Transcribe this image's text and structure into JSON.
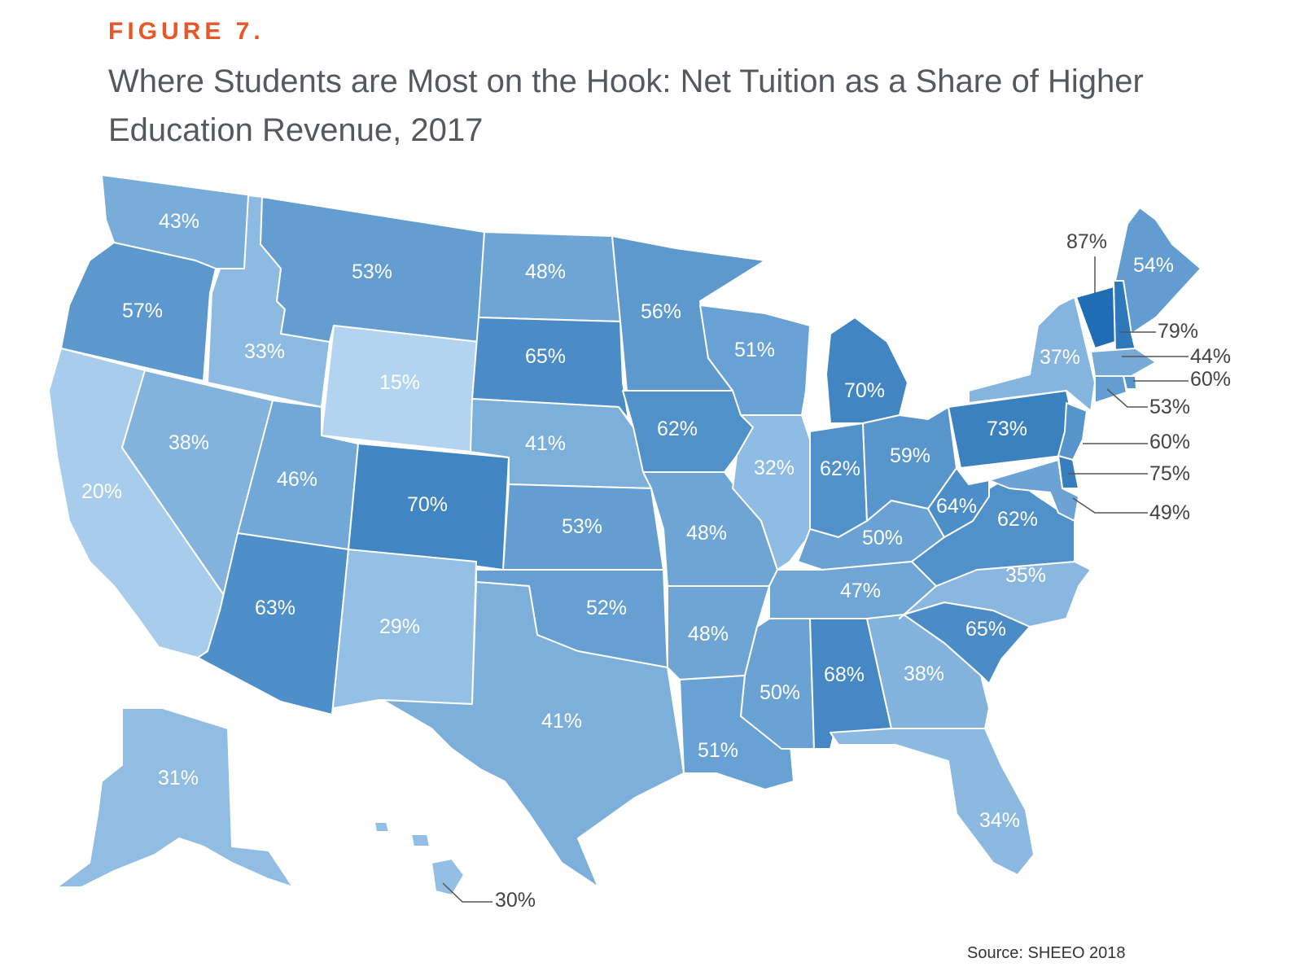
{
  "figure_label": "FIGURE 7.",
  "title": "Where Students are Most on the Hook: Net Tuition as a Share of Higher Education Revenue, 2017",
  "source": "Source: SHEEO 2018",
  "colors": {
    "label_accent": "#e8572a",
    "title_text": "#55595e",
    "scale_light": "#b2d4f0",
    "scale_dark": "#1e6db5"
  },
  "chart_data": {
    "type": "choropleth",
    "units": "percent",
    "states": [
      {
        "state": "WA",
        "value": 43,
        "label": "43%"
      },
      {
        "state": "OR",
        "value": 57,
        "label": "57%"
      },
      {
        "state": "CA",
        "value": 20,
        "label": "20%"
      },
      {
        "state": "ID",
        "value": 33,
        "label": "33%"
      },
      {
        "state": "NV",
        "value": 38,
        "label": "38%"
      },
      {
        "state": "MT",
        "value": 53,
        "label": "53%"
      },
      {
        "state": "WY",
        "value": 15,
        "label": "15%"
      },
      {
        "state": "UT",
        "value": 46,
        "label": "46%"
      },
      {
        "state": "AZ",
        "value": 63,
        "label": "63%"
      },
      {
        "state": "CO",
        "value": 70,
        "label": "70%"
      },
      {
        "state": "NM",
        "value": 29,
        "label": "29%"
      },
      {
        "state": "ND",
        "value": 48,
        "label": "48%"
      },
      {
        "state": "SD",
        "value": 65,
        "label": "65%"
      },
      {
        "state": "NE",
        "value": 41,
        "label": "41%"
      },
      {
        "state": "KS",
        "value": 53,
        "label": "53%"
      },
      {
        "state": "OK",
        "value": 52,
        "label": "52%"
      },
      {
        "state": "TX",
        "value": 41,
        "label": "41%"
      },
      {
        "state": "MN",
        "value": 56,
        "label": "56%"
      },
      {
        "state": "IA",
        "value": 62,
        "label": "62%"
      },
      {
        "state": "MO",
        "value": 48,
        "label": "48%"
      },
      {
        "state": "AR",
        "value": 48,
        "label": "48%"
      },
      {
        "state": "LA",
        "value": 51,
        "label": "51%"
      },
      {
        "state": "WI",
        "value": 51,
        "label": "51%"
      },
      {
        "state": "IL",
        "value": 32,
        "label": "32%"
      },
      {
        "state": "MI",
        "value": 70,
        "label": "70%"
      },
      {
        "state": "IN",
        "value": 62,
        "label": "62%"
      },
      {
        "state": "OH",
        "value": 59,
        "label": "59%"
      },
      {
        "state": "KY",
        "value": 50,
        "label": "50%"
      },
      {
        "state": "TN",
        "value": 47,
        "label": "47%"
      },
      {
        "state": "MS",
        "value": 50,
        "label": "50%"
      },
      {
        "state": "AL",
        "value": 68,
        "label": "68%"
      },
      {
        "state": "GA",
        "value": 38,
        "label": "38%"
      },
      {
        "state": "FL",
        "value": 34,
        "label": "34%"
      },
      {
        "state": "SC",
        "value": 65,
        "label": "65%"
      },
      {
        "state": "NC",
        "value": 35,
        "label": "35%"
      },
      {
        "state": "VA",
        "value": 62,
        "label": "62%"
      },
      {
        "state": "WV",
        "value": 64,
        "label": "64%"
      },
      {
        "state": "PA",
        "value": 73,
        "label": "73%"
      },
      {
        "state": "NY",
        "value": 37,
        "label": "37%"
      },
      {
        "state": "ME",
        "value": 54,
        "label": "54%"
      },
      {
        "state": "VT",
        "value": 87,
        "label": "87%"
      },
      {
        "state": "NH",
        "value": 79,
        "label": "79%"
      },
      {
        "state": "MA",
        "value": 44,
        "label": "44%"
      },
      {
        "state": "RI",
        "value": 60,
        "label": "60%"
      },
      {
        "state": "CT",
        "value": 53,
        "label": "53%"
      },
      {
        "state": "NJ",
        "value": 60,
        "label": "60%"
      },
      {
        "state": "DE",
        "value": 75,
        "label": "75%"
      },
      {
        "state": "MD",
        "value": 49,
        "label": "49%"
      },
      {
        "state": "AK",
        "value": 31,
        "label": "31%"
      },
      {
        "state": "HI",
        "value": 30,
        "label": "30%"
      }
    ]
  }
}
